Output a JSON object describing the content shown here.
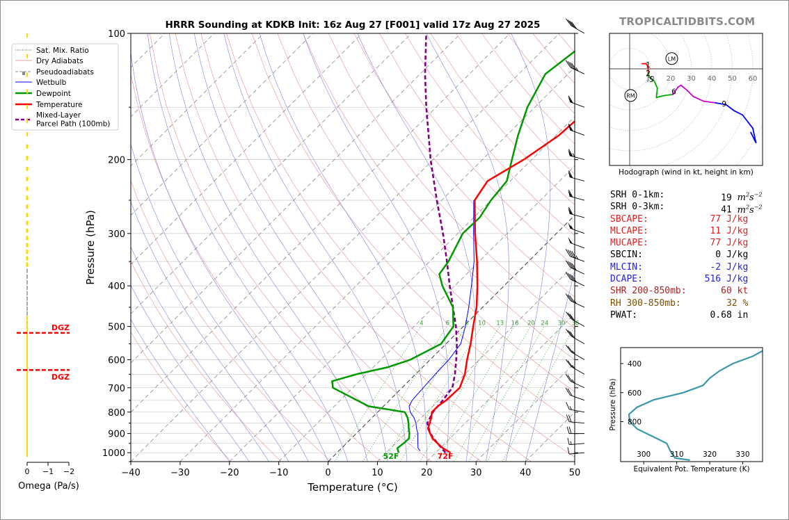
{
  "title": "HRRR Sounding at KDKB Init: 16z Aug 27 [F001] valid 17z Aug 27 2025",
  "brand": "TROPICALTIDBITS.COM",
  "colors": {
    "temperature": "#ff0000",
    "dewpoint": "#009900",
    "wetbulb": "#0000ff",
    "parcel": "#800080",
    "dgz": "#ff0000",
    "omega": "#ffd700",
    "hodo_low": "#ff0000",
    "hodo_mid": "#00aa00",
    "hodo_upper": "#cc00cc",
    "hodo_high": "#0000ff",
    "profile": "#3a97a9"
  },
  "legend": [
    "Sat. Mix. Ratio",
    "Dry Adiabats",
    "Pseudoadiabats",
    "Wetbulb",
    "Dewpoint",
    "Temperature",
    "Mixed-Layer\nParcel Path (100mb)"
  ],
  "skewt": {
    "ylabel": "Pressure (hPa)",
    "xlabel": "Temperature (°C)",
    "xlim": [
      -40,
      50
    ],
    "ylim": [
      1050,
      100
    ],
    "xticks": [
      -40,
      -30,
      -20,
      -10,
      0,
      10,
      20,
      30,
      40,
      50
    ],
    "yticks": [
      100,
      200,
      300,
      400,
      500,
      600,
      700,
      800,
      900,
      1000
    ],
    "surface_temp_label": "72F",
    "surface_dew_label": "52F",
    "mixing_ratio_labels": [
      "4",
      "6",
      "8",
      "10",
      "13",
      "16",
      "20",
      "24",
      "30",
      "36"
    ],
    "mixing_ratio_values": [
      4,
      6,
      8,
      10,
      13,
      16,
      20,
      24,
      30,
      36
    ],
    "temperature": [
      [
        1000,
        23
      ],
      [
        975,
        20.5
      ],
      [
        950,
        18.5
      ],
      [
        925,
        16.5
      ],
      [
        900,
        15
      ],
      [
        875,
        13.5
      ],
      [
        850,
        12.8
      ],
      [
        825,
        12
      ],
      [
        800,
        11
      ],
      [
        775,
        11
      ],
      [
        750,
        11.5
      ],
      [
        700,
        11.7
      ],
      [
        650,
        10
      ],
      [
        600,
        7.5
      ],
      [
        550,
        5
      ],
      [
        500,
        2
      ],
      [
        450,
        -1.2
      ],
      [
        400,
        -5.4
      ],
      [
        350,
        -10.4
      ],
      [
        300,
        -16.5
      ],
      [
        250,
        -23.3
      ],
      [
        225,
        -24.6
      ],
      [
        200,
        -21.6
      ],
      [
        175,
        -19.4
      ],
      [
        150,
        -18.7
      ],
      [
        125,
        -16.4
      ],
      [
        100,
        -12.2
      ]
    ],
    "dewpoint": [
      [
        1000,
        12.5
      ],
      [
        975,
        11.3
      ],
      [
        950,
        11.6
      ],
      [
        925,
        11.7
      ],
      [
        900,
        10.8
      ],
      [
        875,
        9.6
      ],
      [
        850,
        8.5
      ],
      [
        825,
        7.2
      ],
      [
        800,
        5.5
      ],
      [
        775,
        -3
      ],
      [
        700,
        -14
      ],
      [
        675,
        -15.5
      ],
      [
        650,
        -12
      ],
      [
        625,
        -7
      ],
      [
        600,
        -4
      ],
      [
        550,
        -1
      ],
      [
        500,
        -2
      ],
      [
        450,
        -6
      ],
      [
        400,
        -12.5
      ],
      [
        375,
        -15.5
      ],
      [
        350,
        -16.2
      ],
      [
        300,
        -19
      ],
      [
        275,
        -18.8
      ],
      [
        250,
        -20
      ],
      [
        225,
        -20.7
      ],
      [
        200,
        -24
      ],
      [
        175,
        -27.7
      ],
      [
        150,
        -31.5
      ],
      [
        125,
        -34.6
      ],
      [
        100,
        -32.2
      ]
    ],
    "wetbulb": [
      [
        990,
        16.5
      ],
      [
        975,
        15.5
      ],
      [
        950,
        14.5
      ],
      [
        925,
        13.5
      ],
      [
        900,
        12.5
      ],
      [
        875,
        11.2
      ],
      [
        850,
        10
      ],
      [
        825,
        8.5
      ],
      [
        800,
        6.6
      ],
      [
        775,
        5.2
      ],
      [
        750,
        4.6
      ],
      [
        700,
        4.3
      ],
      [
        650,
        4
      ],
      [
        600,
        3.8
      ],
      [
        550,
        3
      ],
      [
        500,
        0.4
      ],
      [
        450,
        -2.8
      ],
      [
        400,
        -6.6
      ],
      [
        350,
        -11
      ],
      [
        300,
        -16.8
      ],
      [
        250,
        -23.5
      ]
    ],
    "parcel": [
      [
        1000,
        22
      ],
      [
        950,
        18.5
      ],
      [
        900,
        15
      ],
      [
        850,
        12.3
      ],
      [
        800,
        11.2
      ],
      [
        750,
        10.8
      ],
      [
        700,
        10.2
      ],
      [
        650,
        8
      ],
      [
        600,
        5.3
      ],
      [
        550,
        2.2
      ],
      [
        500,
        -1.5
      ],
      [
        450,
        -6
      ],
      [
        400,
        -11
      ],
      [
        350,
        -16.5
      ],
      [
        300,
        -23
      ],
      [
        250,
        -31
      ],
      [
        200,
        -40.5
      ],
      [
        150,
        -52
      ],
      [
        125,
        -59
      ],
      [
        100,
        -67
      ]
    ]
  },
  "omega": {
    "xlabel": "Omega (Pa/s)",
    "ticks": [
      "0",
      "−1",
      "−2"
    ],
    "dgz_label": "DGZ",
    "dgz_top": 518,
    "dgz_bottom": 635
  },
  "wind_barbs": [
    {
      "p": 1000,
      "dir": 265,
      "spd": 10
    },
    {
      "p": 950,
      "dir": 265,
      "spd": 15
    },
    {
      "p": 900,
      "dir": 270,
      "spd": 20
    },
    {
      "p": 850,
      "dir": 275,
      "spd": 20
    },
    {
      "p": 800,
      "dir": 280,
      "spd": 15
    },
    {
      "p": 750,
      "dir": 290,
      "spd": 20
    },
    {
      "p": 700,
      "dir": 295,
      "spd": 25
    },
    {
      "p": 650,
      "dir": 300,
      "spd": 25
    },
    {
      "p": 600,
      "dir": 300,
      "spd": 25
    },
    {
      "p": 550,
      "dir": 300,
      "spd": 30
    },
    {
      "p": 500,
      "dir": 300,
      "spd": 30
    },
    {
      "p": 450,
      "dir": 295,
      "spd": 35
    },
    {
      "p": 400,
      "dir": 295,
      "spd": 40
    },
    {
      "p": 375,
      "dir": 295,
      "spd": 40
    },
    {
      "p": 350,
      "dir": 290,
      "spd": 45
    },
    {
      "p": 325,
      "dir": 290,
      "spd": 50
    },
    {
      "p": 300,
      "dir": 290,
      "spd": 55
    },
    {
      "p": 275,
      "dir": 285,
      "spd": 60
    },
    {
      "p": 250,
      "dir": 285,
      "spd": 60
    },
    {
      "p": 225,
      "dir": 285,
      "spd": 60
    },
    {
      "p": 200,
      "dir": 285,
      "spd": 65
    },
    {
      "p": 175,
      "dir": 290,
      "spd": 60
    },
    {
      "p": 150,
      "dir": 290,
      "spd": 60
    },
    {
      "p": 125,
      "dir": 295,
      "spd": 45
    },
    {
      "p": 100,
      "dir": 300,
      "spd": 40
    }
  ],
  "hodograph": {
    "caption": "Hodograph (wind in kt, height in km)",
    "ring_labels": [
      "10",
      "20",
      "30",
      "40",
      "50",
      "60"
    ],
    "storm_motion": {
      "LM": {
        "u": 20.5,
        "v": 5
      },
      "RM": {
        "u": 0.5,
        "v": -13
      }
    },
    "height_labels": [
      {
        "label": "1",
        "u": 9,
        "v": 2
      },
      {
        "label": "2",
        "u": 9,
        "v": -2
      },
      {
        "label": ".5",
        "u": 10,
        "v": -5
      },
      {
        "label": "6",
        "u": 21.5,
        "v": -11
      },
      {
        "label": "9",
        "u": 46,
        "v": -17
      }
    ],
    "trace": [
      {
        "u": 6,
        "v": 2.5,
        "c": "hodo_low"
      },
      {
        "u": 8,
        "v": 2.5,
        "c": "hodo_low"
      },
      {
        "u": 9,
        "v": 1,
        "c": "hodo_low"
      },
      {
        "u": 9,
        "v": -2,
        "c": "hodo_low"
      },
      {
        "u": 9.5,
        "v": -4,
        "c": "hodo_mid"
      },
      {
        "u": 12,
        "v": -6,
        "c": "hodo_mid"
      },
      {
        "u": 13.5,
        "v": -9.5,
        "c": "hodo_mid"
      },
      {
        "u": 13,
        "v": -14,
        "c": "hodo_mid"
      },
      {
        "u": 17,
        "v": -13,
        "c": "hodo_mid"
      },
      {
        "u": 21,
        "v": -12.5,
        "c": "hodo_mid"
      },
      {
        "u": 23.5,
        "v": -9,
        "c": "hodo_upper"
      },
      {
        "u": 25,
        "v": -8,
        "c": "hodo_upper"
      },
      {
        "u": 28,
        "v": -10.5,
        "c": "hodo_upper"
      },
      {
        "u": 31,
        "v": -13.5,
        "c": "hodo_upper"
      },
      {
        "u": 36,
        "v": -15.8,
        "c": "hodo_upper"
      },
      {
        "u": 42,
        "v": -16.6,
        "c": "hodo_upper"
      },
      {
        "u": 47,
        "v": -17.5,
        "c": "hodo_high"
      },
      {
        "u": 51,
        "v": -20.5,
        "c": "hodo_high"
      },
      {
        "u": 55,
        "v": -22.5,
        "c": "hodo_high"
      },
      {
        "u": 60,
        "v": -29,
        "c": "hodo_high"
      },
      {
        "u": 61.5,
        "v": -36,
        "c": "hodo_high"
      },
      {
        "u": 59,
        "v": -31,
        "c": "hodo_high"
      }
    ]
  },
  "stats": [
    {
      "label": "SRH 0-1km:",
      "value": "19",
      "unit": "m2s-2",
      "color": "#000000"
    },
    {
      "label": "SRH 0-3km:",
      "value": "41",
      "unit": "m2s-2",
      "color": "#000000"
    },
    {
      "label": "SBCAPE:",
      "value": "77 J/kg",
      "color": "#dd2222"
    },
    {
      "label": "MLCAPE:",
      "value": "11 J/kg",
      "color": "#dd2222"
    },
    {
      "label": "MUCAPE:",
      "value": "77 J/kg",
      "color": "#dd2222"
    },
    {
      "label": "SBCIN:",
      "value": "0 J/kg",
      "color": "#000000"
    },
    {
      "label": "MLCIN:",
      "value": "-2 J/kg",
      "color": "#2222dd"
    },
    {
      "label": "DCAPE:",
      "value": "516 J/kg",
      "color": "#2222dd"
    },
    {
      "label": "SHR 200-850mb:",
      "value": "60 kt",
      "color": "#aa2222"
    },
    {
      "label": "RH 300-850mb:",
      "value": "32 %",
      "color": "#7a5000"
    },
    {
      "label": "PWAT:",
      "value": "0.68 in",
      "color": "#000000"
    }
  ],
  "theta_e": {
    "ylabel": "Pressure (hPa)",
    "xlabel": "Equivalent Pot. Temperature (K)",
    "xticks": [
      300,
      310,
      320,
      330
    ],
    "yticks": [
      400,
      600,
      800
    ],
    "profile": [
      [
        300,
        337
      ],
      [
        350,
        333
      ],
      [
        400,
        327
      ],
      [
        450,
        323
      ],
      [
        500,
        320
      ],
      [
        550,
        318
      ],
      [
        600,
        312
      ],
      [
        650,
        303
      ],
      [
        700,
        298
      ],
      [
        750,
        295.5
      ],
      [
        800,
        295.8
      ],
      [
        850,
        298
      ],
      [
        900,
        302.5
      ],
      [
        950,
        307
      ],
      [
        1000,
        308
      ],
      [
        1050,
        309.5
      ],
      [
        1065,
        314
      ]
    ]
  }
}
